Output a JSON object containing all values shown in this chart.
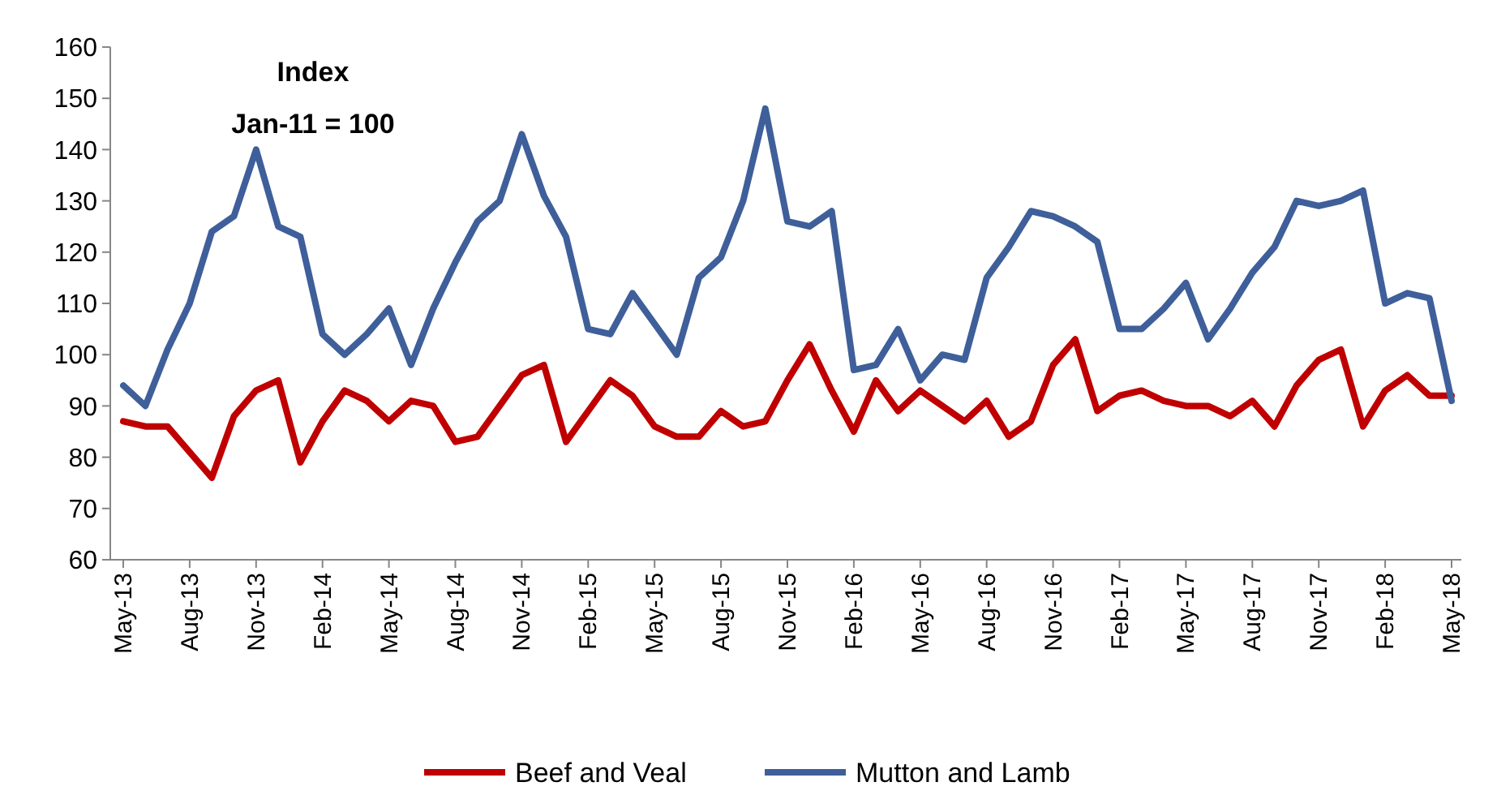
{
  "chart_data": {
    "type": "line",
    "annotations": [
      "Index",
      "Jan-11 = 100"
    ],
    "categories": [
      "May-13",
      null,
      null,
      "Aug-13",
      null,
      null,
      "Nov-13",
      null,
      null,
      "Feb-14",
      null,
      null,
      "May-14",
      null,
      null,
      "Aug-14",
      null,
      null,
      "Nov-14",
      null,
      null,
      "Feb-15",
      null,
      null,
      "May-15",
      null,
      null,
      "Aug-15",
      null,
      null,
      "Nov-15",
      null,
      null,
      "Feb-16",
      null,
      null,
      "May-16",
      null,
      null,
      "Aug-16",
      null,
      null,
      "Nov-16",
      null,
      null,
      "Feb-17",
      null,
      null,
      "May-17",
      null,
      null,
      "Aug-17",
      null,
      null,
      "Nov-17",
      null,
      null,
      "Feb-18",
      null,
      null,
      "May-18"
    ],
    "series": [
      {
        "name": "Beef and Veal",
        "color": "#c00000",
        "values": [
          87,
          86,
          86,
          81,
          76,
          88,
          93,
          95,
          79,
          87,
          93,
          91,
          87,
          91,
          90,
          83,
          84,
          90,
          96,
          98,
          83,
          89,
          95,
          92,
          86,
          84,
          84,
          89,
          86,
          87,
          95,
          102,
          93,
          85,
          95,
          89,
          93,
          90,
          87,
          91,
          84,
          87,
          98,
          103,
          89,
          92,
          93,
          91,
          90,
          90,
          88,
          91,
          86,
          94,
          99,
          101,
          86,
          93,
          96,
          92,
          92
        ]
      },
      {
        "name": "Mutton and Lamb",
        "color": "#3f5f9a",
        "values": [
          94,
          90,
          101,
          110,
          124,
          127,
          140,
          125,
          123,
          104,
          100,
          104,
          109,
          98,
          109,
          118,
          126,
          130,
          143,
          131,
          123,
          105,
          104,
          112,
          106,
          100,
          115,
          119,
          130,
          148,
          126,
          125,
          128,
          97,
          98,
          105,
          95,
          100,
          99,
          115,
          121,
          128,
          127,
          125,
          122,
          105,
          105,
          109,
          114,
          103,
          109,
          116,
          121,
          130,
          129,
          130,
          132,
          110,
          112,
          111,
          91
        ]
      }
    ],
    "ylim": [
      60,
      160
    ],
    "yticks": [
      60,
      70,
      80,
      90,
      100,
      110,
      120,
      130,
      140,
      150,
      160
    ],
    "grid": false,
    "legend": "bottom",
    "marker": "none",
    "line_style": "solid"
  }
}
